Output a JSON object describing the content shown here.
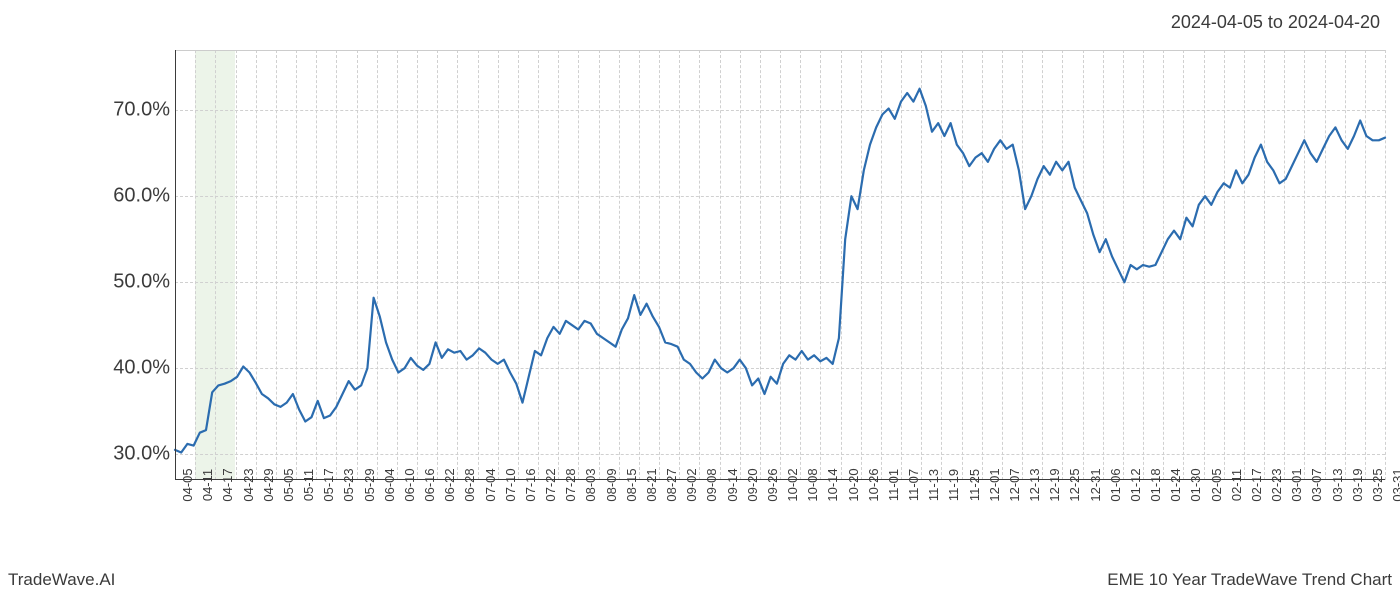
{
  "header": {
    "date_range": "2024-04-05 to 2024-04-20"
  },
  "footer": {
    "left": "TradeWave.AI",
    "right": "EME 10 Year TradeWave Trend Chart"
  },
  "chart": {
    "type": "line",
    "background_color": "#ffffff",
    "line_color": "#2b6caf",
    "line_width": 2.2,
    "grid_color": "#d0d0d0",
    "grid_dash": "4 3",
    "axis_color": "#3b3b3b",
    "highlight_band": {
      "color": "#d9ead3",
      "opacity": 0.5,
      "x_start_index": 1,
      "x_end_index": 3
    },
    "y_axis": {
      "min": 27,
      "max": 77,
      "ticks": [
        30,
        40,
        50,
        60,
        70
      ],
      "tick_labels": [
        "30.0%",
        "40.0%",
        "50.0%",
        "60.0%",
        "70.0%"
      ],
      "label_fontsize": 20
    },
    "x_axis": {
      "labels": [
        "04-05",
        "04-11",
        "04-17",
        "04-23",
        "04-29",
        "05-05",
        "05-11",
        "05-17",
        "05-23",
        "05-29",
        "06-04",
        "06-10",
        "06-16",
        "06-22",
        "06-28",
        "07-04",
        "07-10",
        "07-16",
        "07-22",
        "07-28",
        "08-03",
        "08-09",
        "08-15",
        "08-21",
        "08-27",
        "09-02",
        "09-08",
        "09-14",
        "09-20",
        "09-26",
        "10-02",
        "10-08",
        "10-14",
        "10-20",
        "10-26",
        "11-01",
        "11-07",
        "11-13",
        "11-19",
        "11-25",
        "12-01",
        "12-07",
        "12-13",
        "12-19",
        "12-25",
        "12-31",
        "01-06",
        "01-12",
        "01-18",
        "01-24",
        "01-30",
        "02-05",
        "02-11",
        "02-17",
        "02-23",
        "03-01",
        "03-07",
        "03-13",
        "03-19",
        "03-25",
        "03-31"
      ],
      "label_fontsize": 13,
      "label_rotation": -90
    },
    "series": {
      "values": [
        30.5,
        30.2,
        31.2,
        31.0,
        32.5,
        32.8,
        37.2,
        38.0,
        38.2,
        38.5,
        39.0,
        40.2,
        39.5,
        38.3,
        37.0,
        36.5,
        35.8,
        35.5,
        36.0,
        37.0,
        35.2,
        33.8,
        34.3,
        36.2,
        34.2,
        34.5,
        35.5,
        37.0,
        38.5,
        37.5,
        38.0,
        40.0,
        48.2,
        46.0,
        43.0,
        41.0,
        39.5,
        40.0,
        41.2,
        40.3,
        39.8,
        40.5,
        43.0,
        41.2,
        42.2,
        41.8,
        42.0,
        41.0,
        41.5,
        42.3,
        41.8,
        41.0,
        40.5,
        41.0,
        39.5,
        38.2,
        36.0,
        39.0,
        42.0,
        41.5,
        43.5,
        44.8,
        44.0,
        45.5,
        45.0,
        44.5,
        45.5,
        45.2,
        44.0,
        43.5,
        43.0,
        42.5,
        44.5,
        45.8,
        48.5,
        46.2,
        47.5,
        46.0,
        44.8,
        43.0,
        42.8,
        42.5,
        41.0,
        40.5,
        39.5,
        38.8,
        39.5,
        41.0,
        40.0,
        39.5,
        40.0,
        41.0,
        40.0,
        38.0,
        38.8,
        37.0,
        39.0,
        38.2,
        40.5,
        41.5,
        41.0,
        42.0,
        41.0,
        41.5,
        40.8,
        41.2,
        40.5,
        43.5,
        55.0,
        60.0,
        58.5,
        63.0,
        66.0,
        68.0,
        69.5,
        70.2,
        69.0,
        71.0,
        72.0,
        71.0,
        72.5,
        70.5,
        67.5,
        68.5,
        67.0,
        68.5,
        66.0,
        65.0,
        63.5,
        64.5,
        65.0,
        64.0,
        65.5,
        66.5,
        65.5,
        66.0,
        63.0,
        58.5,
        60.0,
        62.0,
        63.5,
        62.5,
        64.0,
        63.0,
        64.0,
        61.0,
        59.5,
        58.0,
        55.5,
        53.5,
        55.0,
        53.0,
        51.5,
        50.0,
        52.0,
        51.5,
        52.0,
        51.8,
        52.0,
        53.5,
        55.0,
        56.0,
        55.0,
        57.5,
        56.5,
        59.0,
        60.0,
        59.0,
        60.5,
        61.5,
        61.0,
        63.0,
        61.5,
        62.5,
        64.5,
        66.0,
        64.0,
        63.0,
        61.5,
        62.0,
        63.5,
        65.0,
        66.5,
        65.0,
        64.0,
        65.5,
        67.0,
        68.0,
        66.5,
        65.5,
        67.0,
        68.8,
        67.0,
        66.5,
        66.5,
        66.8
      ]
    }
  }
}
